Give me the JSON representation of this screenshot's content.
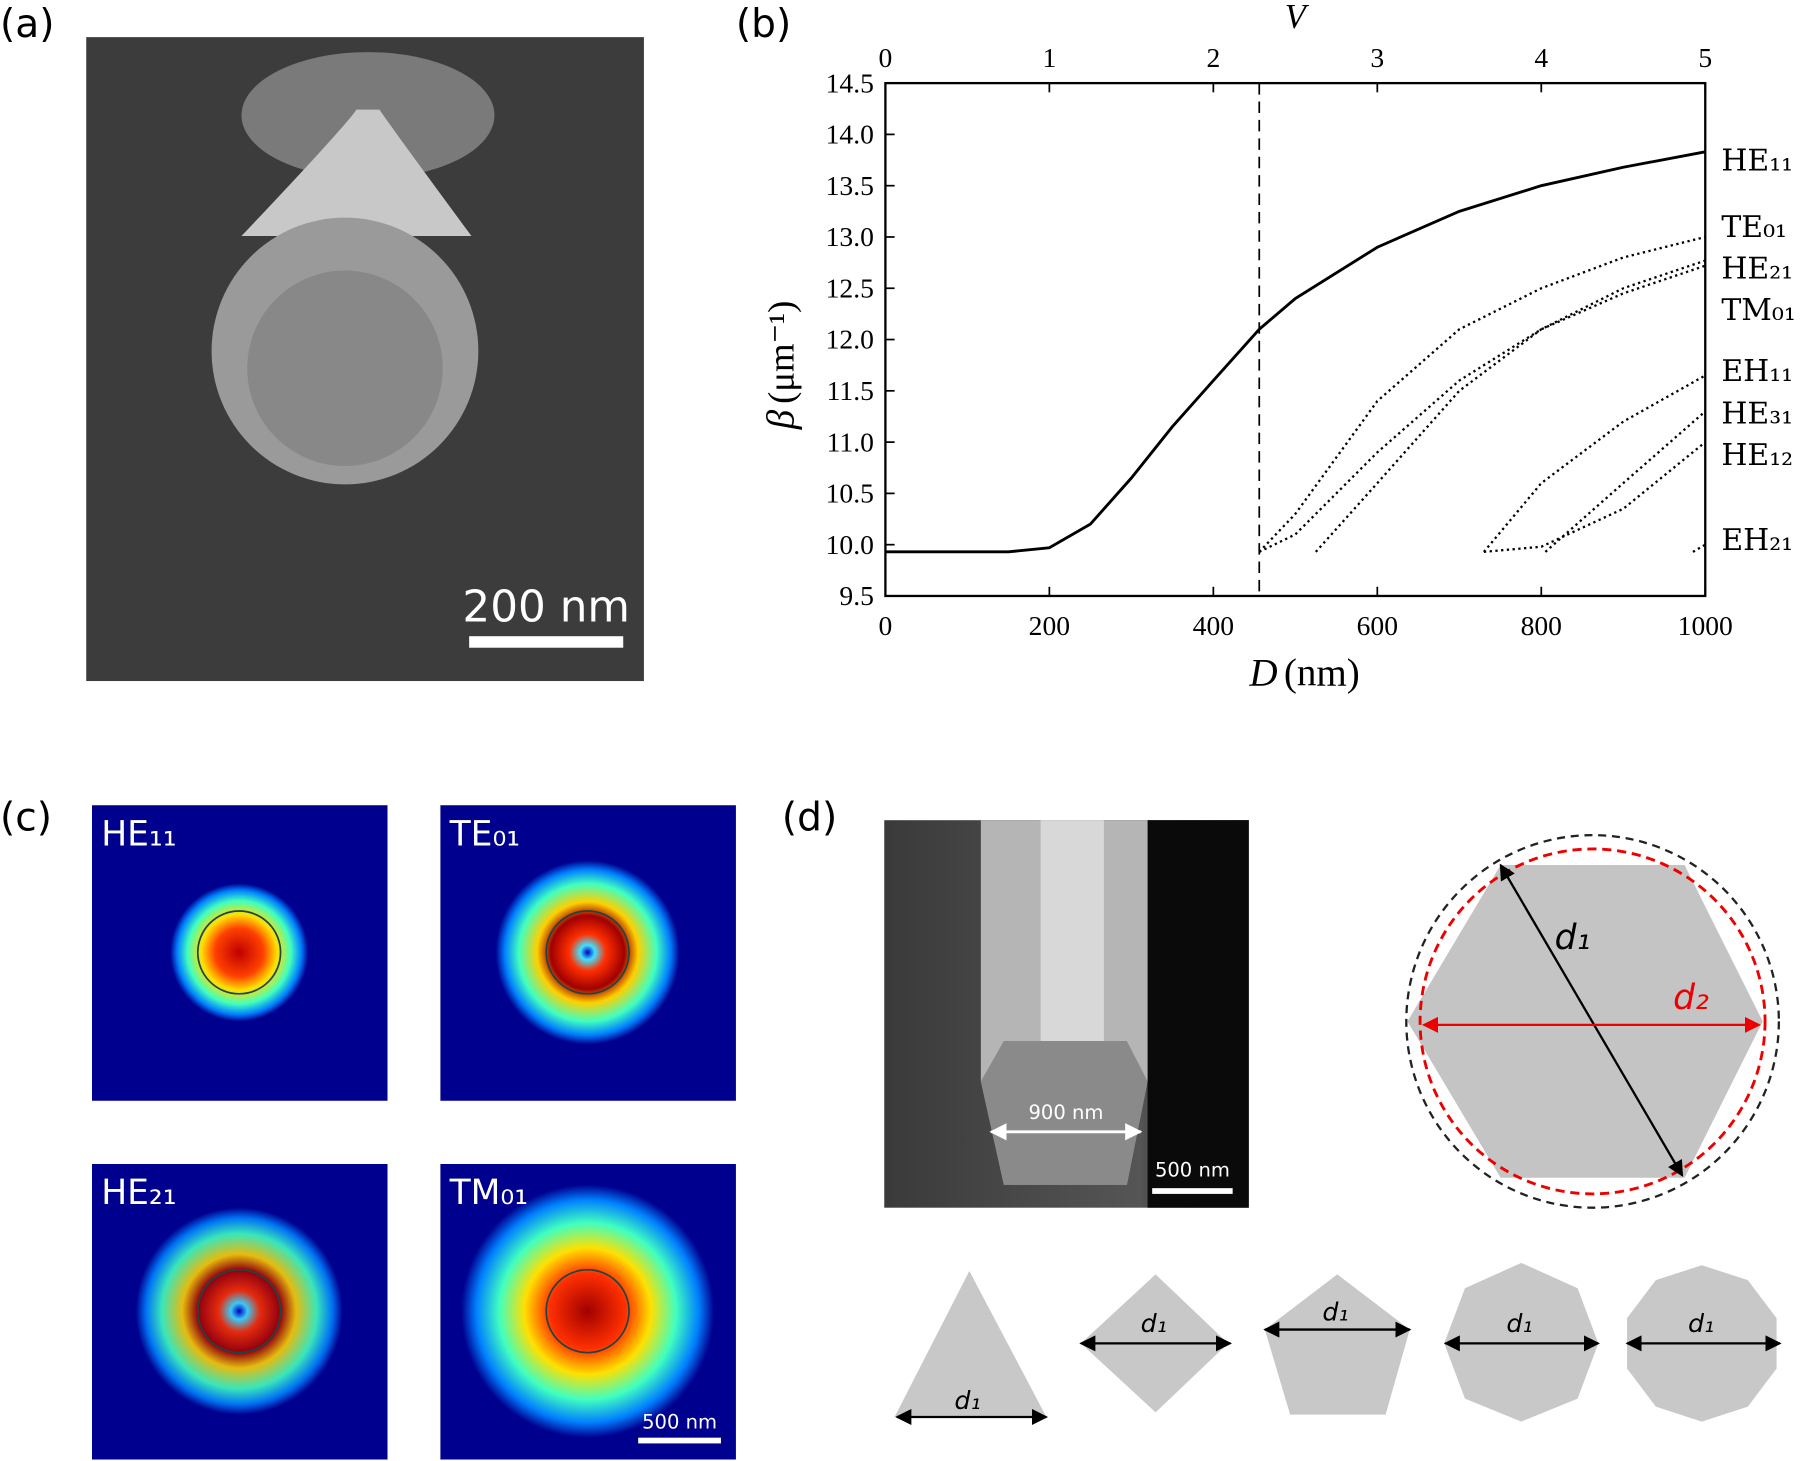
{
  "panel_labels": [
    "(a)",
    "(b)",
    "(c)",
    "(d)"
  ],
  "panel_a": {
    "scale_bar": "200 nm"
  },
  "chart_data": {
    "type": "line",
    "top_label": "V",
    "x_label_symbol": "D",
    "x_label_unit": "(nm)",
    "y_label_symbol": "β",
    "y_label_unit": "(μm⁻¹)",
    "xlim": [
      0,
      1000
    ],
    "xticks": [
      0,
      200,
      400,
      600,
      800,
      1000
    ],
    "x2lim": [
      0,
      5
    ],
    "x2ticks": [
      0,
      1,
      2,
      3,
      4,
      5
    ],
    "ylim": [
      9.5,
      14.5
    ],
    "yticks": [
      9.5,
      {
        "value": 10,
        "label": "10.0"
      },
      10.5,
      {
        "value": 11,
        "label": "11.0"
      },
      11.5,
      {
        "value": 12,
        "label": "12.0"
      },
      12.5,
      {
        "value": 13,
        "label": "13.0"
      },
      13.5,
      {
        "value": 14,
        "label": "14.0"
      },
      14.5
    ],
    "vline_x": 456,
    "series": [
      {
        "name": "HE₁₁",
        "color": "#000000",
        "line_style": "solid",
        "x": [
          0,
          150,
          200,
          250,
          300,
          350,
          400,
          456,
          500,
          600,
          700,
          800,
          900,
          1000
        ],
        "values": [
          9.93,
          9.93,
          9.97,
          10.2,
          10.65,
          11.15,
          11.6,
          12.1,
          12.4,
          12.9,
          13.25,
          13.5,
          13.68,
          13.83
        ]
      },
      {
        "name": "TE₀₁",
        "color": "#000000",
        "line_style": "dotted",
        "x": [
          456,
          500,
          600,
          700,
          800,
          900,
          1000
        ],
        "values": [
          9.93,
          10.3,
          11.4,
          12.1,
          12.5,
          12.8,
          13.0
        ]
      },
      {
        "name": "HE₂₁",
        "color": "#000000",
        "line_style": "dotted",
        "x": [
          525,
          600,
          700,
          800,
          900,
          1000
        ],
        "values": [
          9.93,
          10.6,
          11.5,
          12.1,
          12.5,
          12.77
        ]
      },
      {
        "name": "TM₀₁",
        "color": "#000000",
        "line_style": "dotted",
        "x": [
          456,
          500,
          600,
          700,
          800,
          900,
          1000
        ],
        "values": [
          9.93,
          10.1,
          10.9,
          11.6,
          12.1,
          12.45,
          12.72
        ]
      },
      {
        "name": "EH₁₁",
        "color": "#000000",
        "line_style": "dotted",
        "x": [
          730,
          800,
          900,
          1000
        ],
        "values": [
          9.93,
          10.6,
          11.2,
          11.65
        ]
      },
      {
        "name": "HE₃₁",
        "color": "#000000",
        "line_style": "dotted",
        "x": [
          805,
          900,
          1000
        ],
        "values": [
          9.93,
          10.6,
          11.3
        ]
      },
      {
        "name": "HE₁₂",
        "color": "#000000",
        "line_style": "dotted",
        "x": [
          730,
          800,
          900,
          1000
        ],
        "values": [
          9.93,
          9.98,
          10.35,
          11.0
        ]
      },
      {
        "name": "EH₂₁",
        "color": "#000000",
        "line_style": "dotted",
        "x": [
          985,
          1000
        ],
        "values": [
          9.93,
          10.0
        ]
      }
    ]
  },
  "panel_c": {
    "modes": [
      "HE₁₁",
      "TE₀₁",
      "HE₂₁",
      "TM₀₁"
    ],
    "scale_bar": "500 nm"
  },
  "panel_d": {
    "sem_width": "900 nm",
    "scale_bar": "500 nm",
    "d1": "d₁",
    "d2": "d₂",
    "shape_labels": [
      "d₁",
      "d₁",
      "d₁",
      "d₁",
      "d₁"
    ]
  }
}
